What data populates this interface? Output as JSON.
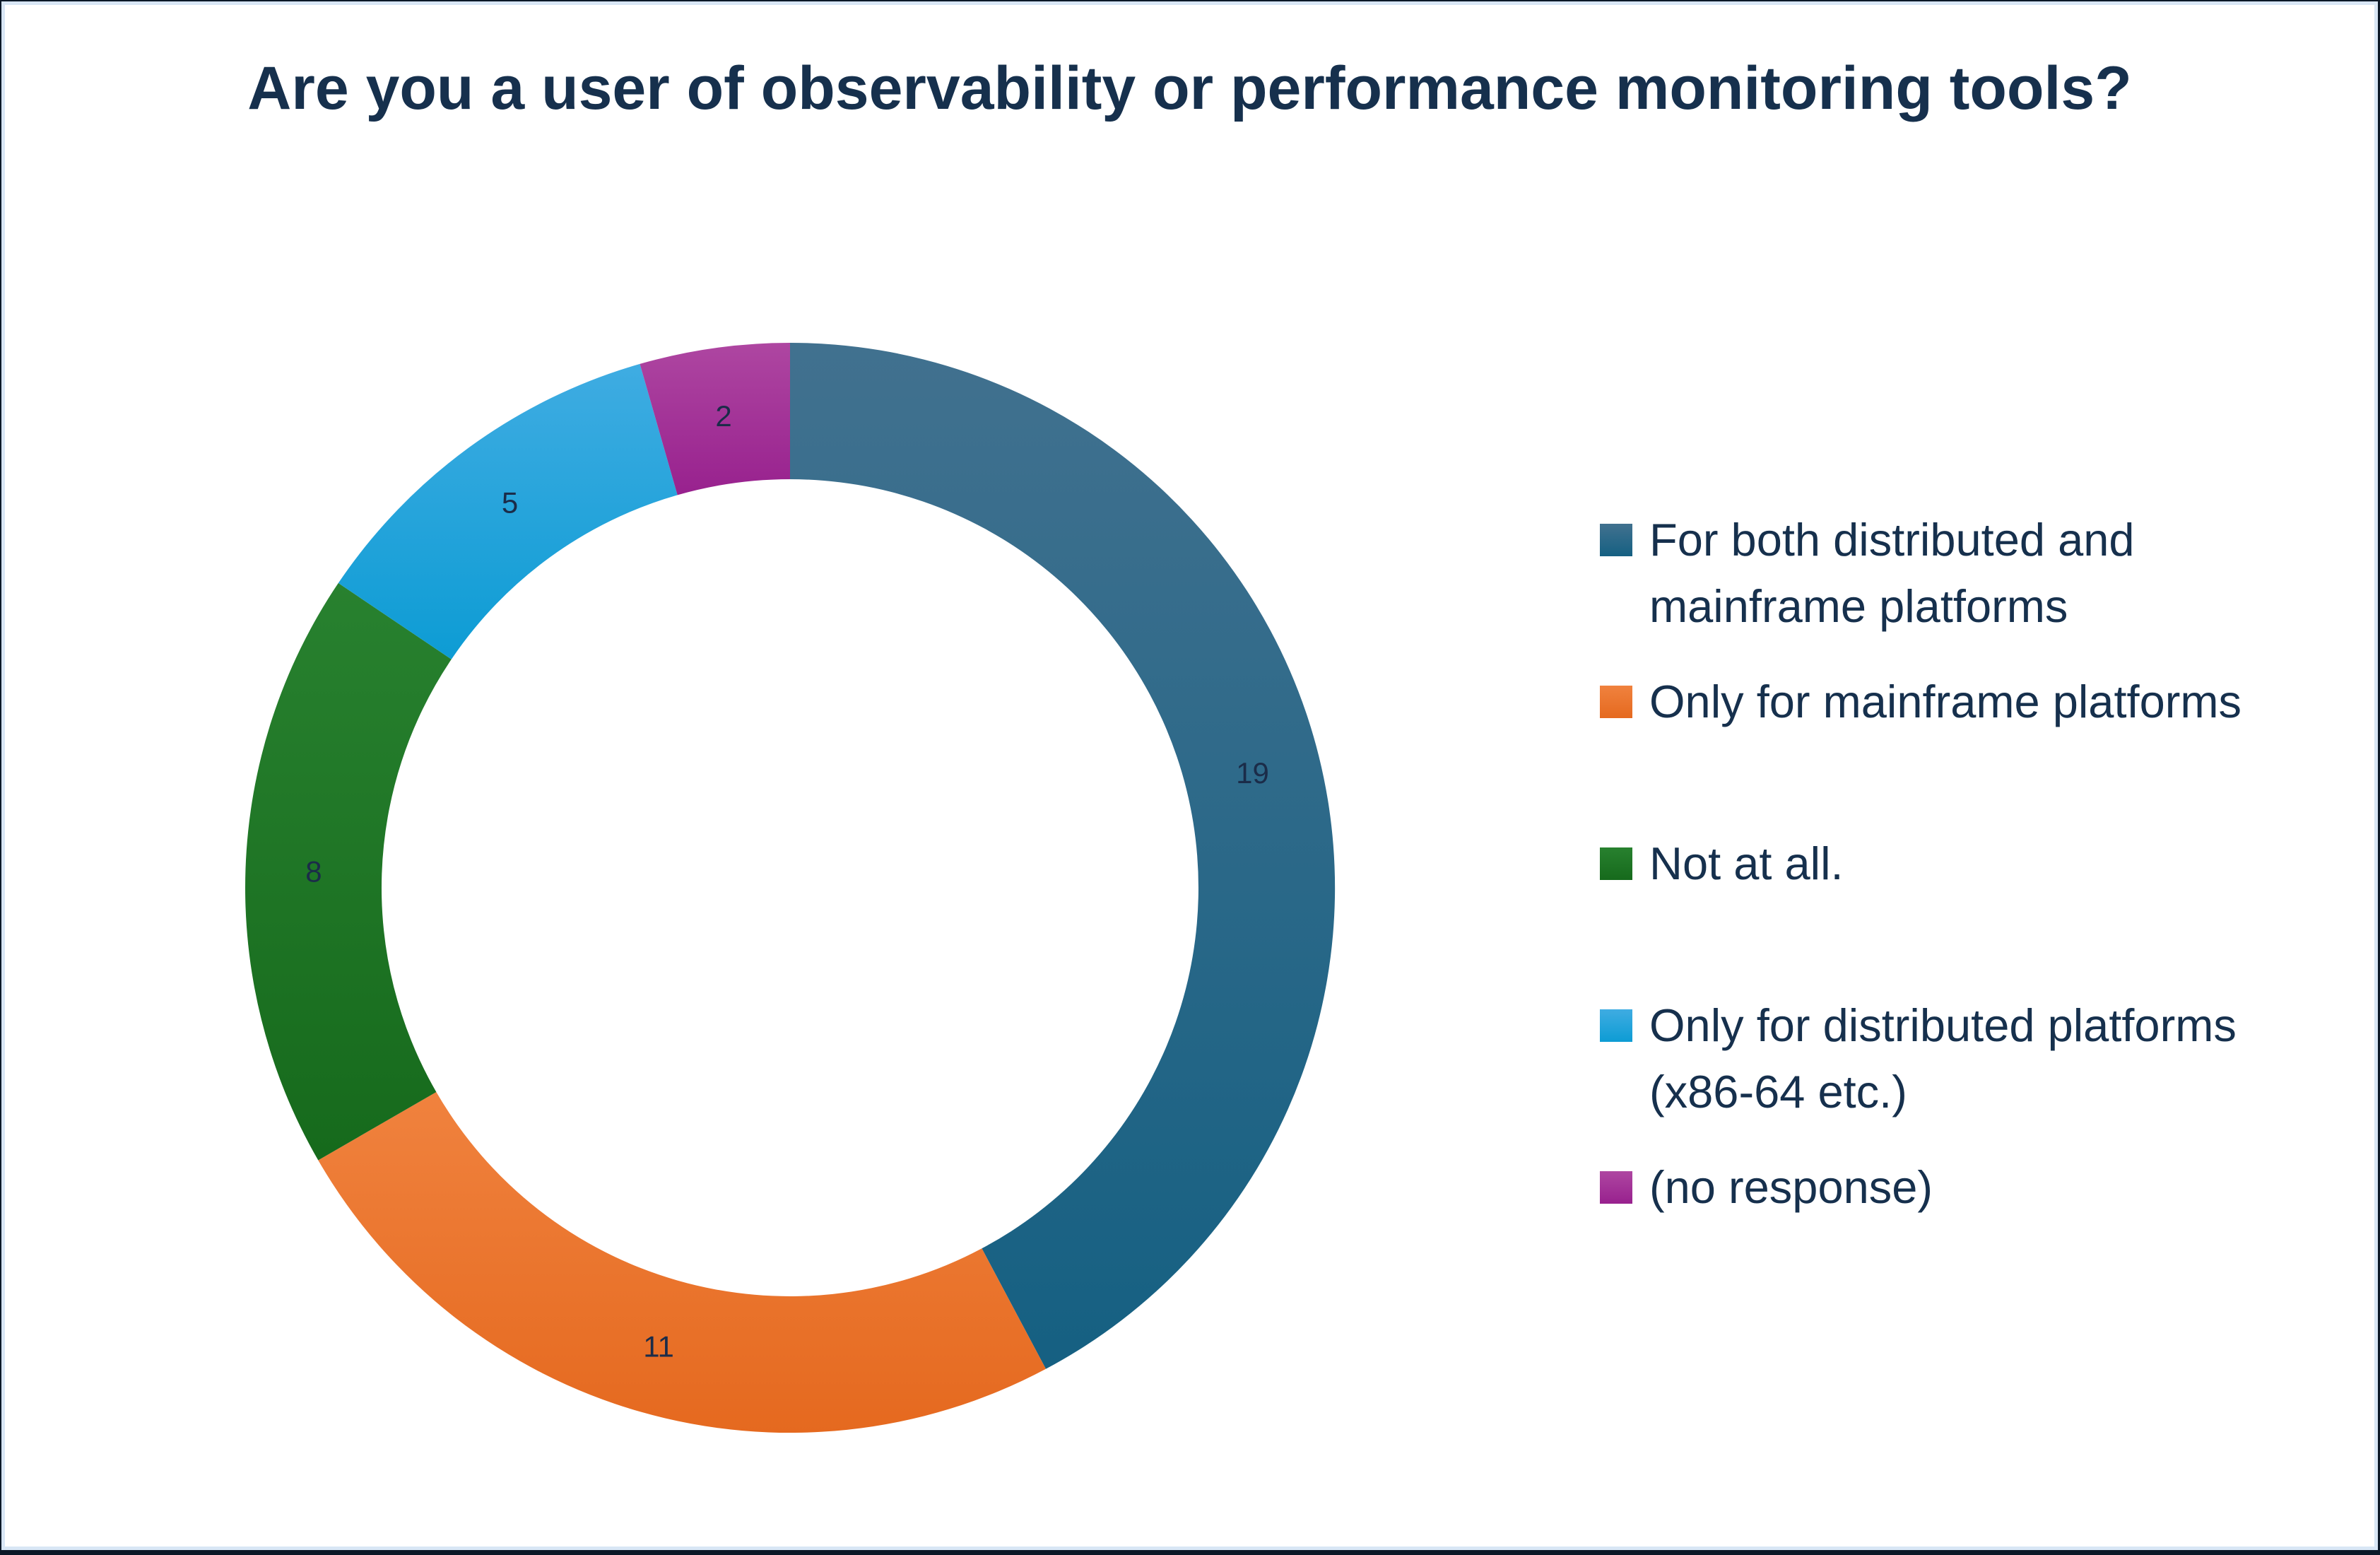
{
  "title": {
    "text": "Are you a user of observability or performance monitoring tools?",
    "color": "#16304D"
  },
  "chart_data": {
    "type": "pie",
    "subtype": "donut",
    "title": "Are you a user of observability or performance monitoring tools?",
    "categories": [
      "For both distributed and mainframe platforms",
      "Only for  mainframe platforms",
      "Not at all.",
      "Only for distributed platforms (x86-64 etc.)",
      "(no response)"
    ],
    "values": [
      19,
      11,
      8,
      5,
      2
    ],
    "total": 45,
    "colors": [
      "#156082",
      "#E5691F",
      "#166A1C",
      "#0D9CD4",
      "#98218E"
    ],
    "colors_light": [
      "#41718F",
      "#F0823E",
      "#28812F",
      "#3FACE2",
      "#AE46A1"
    ],
    "data_labels": "values",
    "data_label_color": "#1B2C49",
    "donut_hole_ratio": 0.75,
    "start_angle_deg": 0,
    "direction": "clockwise",
    "legend_position": "right"
  },
  "legend": {
    "text_color": "#16304D",
    "items": [
      {
        "label": "For both distributed and\nmainframe platforms",
        "color": "#156082"
      },
      {
        "label": "Only for  mainframe platforms",
        "color": "#E5691F"
      },
      {
        "label": "Not at all.",
        "color": "#166A1C"
      },
      {
        "label": "Only for distributed platforms\n(x86-64 etc.)",
        "color": "#0D9CD4"
      },
      {
        "label": "(no response)",
        "color": "#98218E"
      }
    ]
  },
  "frame": {
    "outer_border_color": "#0B1827",
    "inner_line_color": "#D8E6F5",
    "background": "#FFFFFF"
  }
}
